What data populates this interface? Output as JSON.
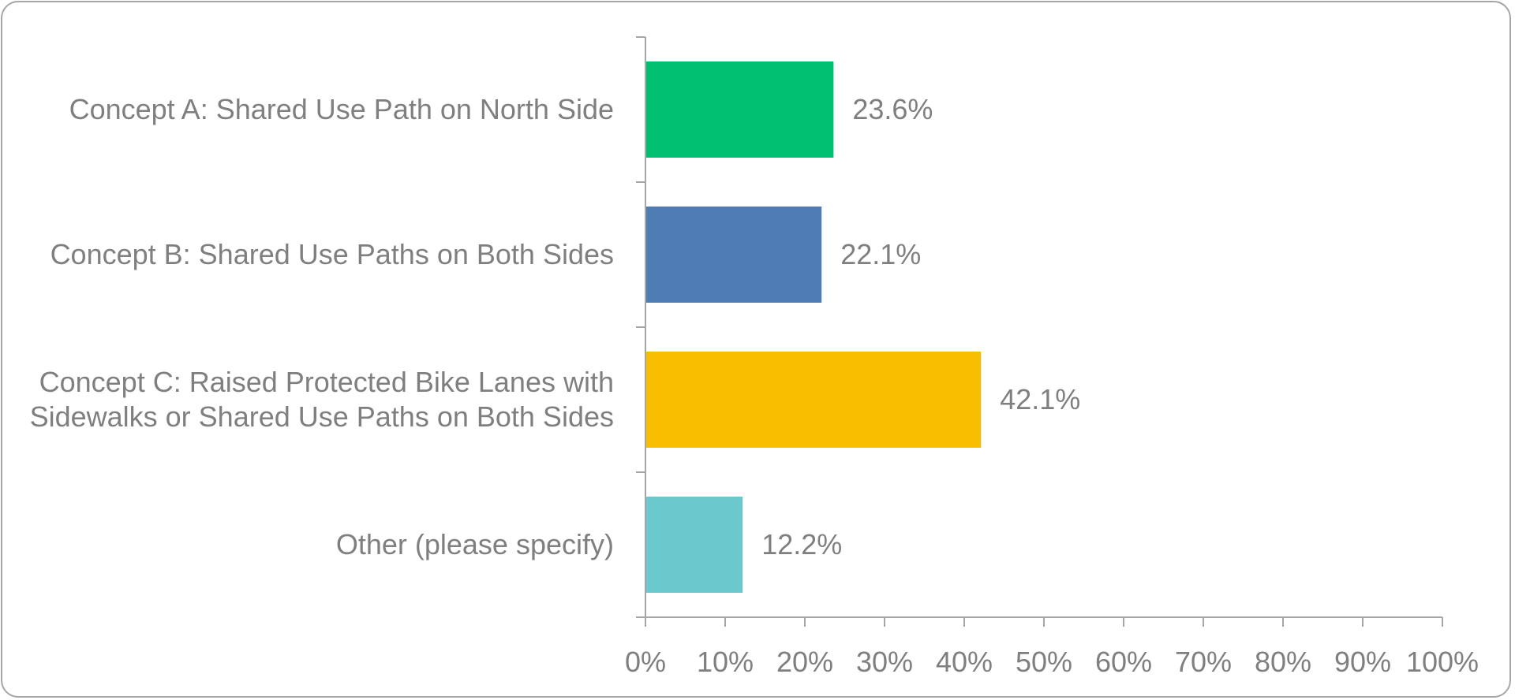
{
  "chart_data": {
    "type": "bar",
    "orientation": "horizontal",
    "categories": [
      [
        "Concept A: Shared Use Path on North Side"
      ],
      [
        "Concept B: Shared Use Paths on Both Sides"
      ],
      [
        "Concept C: Raised Protected Bike Lanes with",
        "Sidewalks or Shared Use Paths on Both Sides"
      ],
      [
        "Other (please specify)"
      ]
    ],
    "values": [
      23.6,
      22.1,
      42.1,
      12.2
    ],
    "value_labels": [
      "23.6%",
      "22.1%",
      "42.1%",
      "12.2%"
    ],
    "colors": [
      "#00bf6f",
      "#507cb6",
      "#f9be00",
      "#6bc8cd"
    ],
    "xlim": [
      0,
      100
    ],
    "xticks": [
      "0%",
      "10%",
      "20%",
      "30%",
      "40%",
      "50%",
      "60%",
      "70%",
      "80%",
      "90%",
      "100%"
    ],
    "title": "",
    "xlabel": "",
    "ylabel": "",
    "grid": false,
    "legend": "none"
  }
}
